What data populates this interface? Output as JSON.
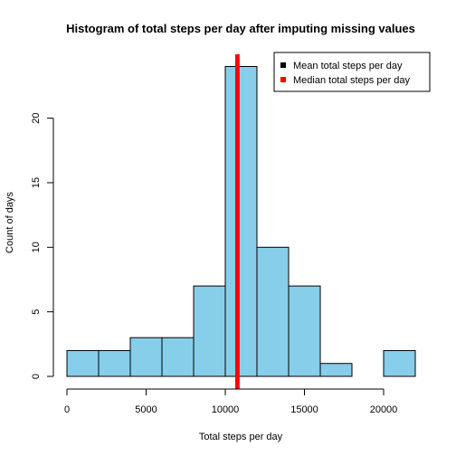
{
  "chart_data": {
    "type": "bar",
    "title": "Histogram of total steps per day after imputing missing values",
    "xlabel": "Total steps per day",
    "ylabel": "Count of days",
    "bins": [
      {
        "from": 0,
        "to": 2000,
        "count": 2
      },
      {
        "from": 2000,
        "to": 4000,
        "count": 2
      },
      {
        "from": 4000,
        "to": 6000,
        "count": 3
      },
      {
        "from": 6000,
        "to": 8000,
        "count": 3
      },
      {
        "from": 8000,
        "to": 10000,
        "count": 7
      },
      {
        "from": 10000,
        "to": 12000,
        "count": 24
      },
      {
        "from": 12000,
        "to": 14000,
        "count": 10
      },
      {
        "from": 14000,
        "to": 16000,
        "count": 7
      },
      {
        "from": 16000,
        "to": 18000,
        "count": 1
      },
      {
        "from": 18000,
        "to": 20000,
        "count": 0
      },
      {
        "from": 20000,
        "to": 22000,
        "count": 2
      }
    ],
    "xlim": [
      0,
      22000
    ],
    "ylim": [
      0,
      24
    ],
    "x_ticks": [
      0,
      5000,
      10000,
      15000,
      20000
    ],
    "y_ticks": [
      0,
      5,
      10,
      15,
      20
    ],
    "bar_color": "#87ceeb",
    "bar_edge_color": "#000000",
    "reference_lines": [
      {
        "name": "Mean total steps per day",
        "value": 10766.19,
        "color": "#000000"
      },
      {
        "name": "Median total steps per day",
        "value": 10766.19,
        "color": "#ff0000"
      }
    ],
    "legend": {
      "position": "top-right",
      "entries": [
        {
          "label": "Mean total steps per day",
          "color": "#000000"
        },
        {
          "label": "Median total steps per day",
          "color": "#ff0000"
        }
      ]
    },
    "grid": false
  }
}
